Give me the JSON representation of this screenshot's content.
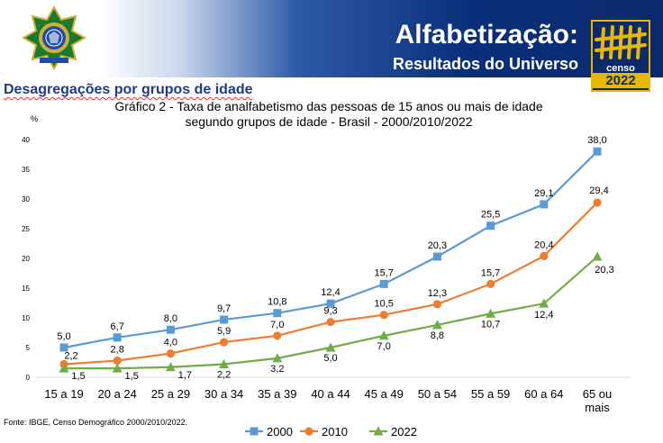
{
  "header": {
    "title": "Alfabetização:",
    "subtitle": "Resultados do Universo",
    "logo_word": "censo",
    "logo_year": "2022"
  },
  "section_title": "Desagregações por grupos de idade",
  "chart_title_line1": "Gráfico 2 - Taxa de analfabetismo das pessoas de 15 anos ou mais de idade",
  "chart_title_line2": "segundo grupos de idade - Brasil - 2000/2010/2022",
  "footer": "Fonte: IBGE, Censo Demográfico 2000/2010/2022.",
  "colors": {
    "2000": "#5b9bd5",
    "2010": "#ed7d31",
    "2022": "#70ad47",
    "banner": "#0b2a6c",
    "section_title": "#1f3a8a"
  },
  "chart_data": {
    "type": "line",
    "title": "Gráfico 2 - Taxa de analfabetismo das pessoas de 15 anos ou mais de idade segundo grupos de idade - Brasil - 2000/2010/2022",
    "ylabel": "%",
    "xlabel": "",
    "ylim": [
      0,
      40
    ],
    "yticks": [
      0,
      5,
      10,
      15,
      20,
      25,
      30,
      35,
      40
    ],
    "grid": false,
    "legend": "bottom",
    "categories": [
      "15 a 19",
      "20 a 24",
      "25 a 29",
      "30 a 34",
      "35 a 39",
      "40 a 44",
      "45 a 49",
      "50 a 54",
      "55 a 59",
      "60 a 64",
      "65 ou mais"
    ],
    "series": [
      {
        "name": "2000",
        "marker": "square",
        "color": "#5b9bd5",
        "values": [
          5.0,
          6.7,
          8.0,
          9.7,
          10.8,
          12.4,
          15.7,
          20.3,
          25.5,
          29.1,
          38.0
        ],
        "labels": [
          "5,0",
          "6,7",
          "8,0",
          "9,7",
          "10,8",
          "12,4",
          "15,7",
          "20,3",
          "25,5",
          "29,1",
          "38,0"
        ]
      },
      {
        "name": "2010",
        "marker": "circle",
        "color": "#ed7d31",
        "values": [
          2.2,
          2.8,
          4.0,
          5.9,
          7.0,
          9.3,
          10.5,
          12.3,
          15.7,
          20.4,
          29.4
        ],
        "labels": [
          "2,2",
          "2,8",
          "4,0",
          "5,9",
          "7,0",
          "9,3",
          "10,5",
          "12,3",
          "15,7",
          "20,4",
          "29,4"
        ]
      },
      {
        "name": "2022",
        "marker": "triangle",
        "color": "#70ad47",
        "values": [
          1.5,
          1.5,
          1.7,
          2.2,
          3.2,
          5.0,
          7.0,
          8.8,
          10.7,
          12.4,
          20.3
        ],
        "labels": [
          "1,5",
          "1,5",
          "1,7",
          "2,2",
          "3,2",
          "5,0",
          "7,0",
          "8,8",
          "10,7",
          "12,4",
          "20,3"
        ]
      }
    ]
  }
}
